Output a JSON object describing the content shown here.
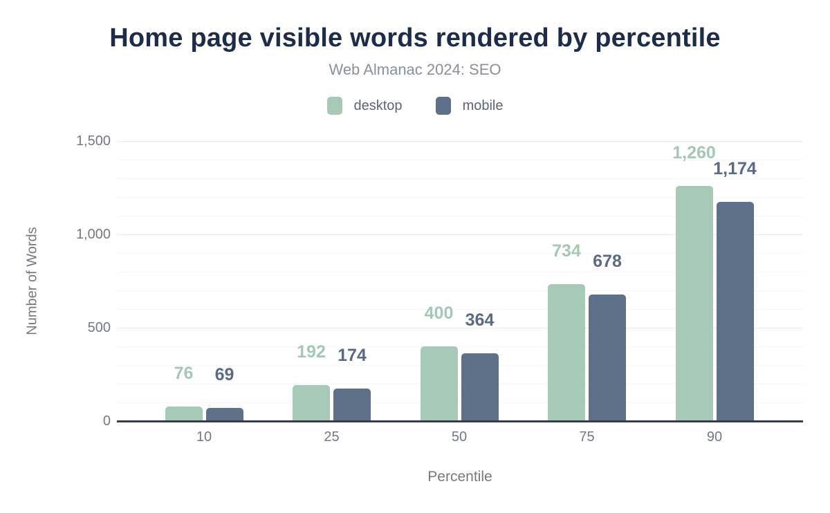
{
  "chart_data": {
    "type": "bar",
    "title": "Home page visible words rendered by percentile",
    "subtitle": "Web Almanac 2024: SEO",
    "xlabel": "Percentile",
    "ylabel": "Number of Words",
    "categories": [
      "10",
      "25",
      "50",
      "75",
      "90"
    ],
    "series": [
      {
        "name": "desktop",
        "color": "#a7cab8",
        "label_color": "#a4c8b5",
        "values": [
          76,
          192,
          400,
          734,
          1260
        ],
        "value_labels": [
          "76",
          "192",
          "400",
          "734",
          "1,260"
        ]
      },
      {
        "name": "mobile",
        "color": "#5f7089",
        "label_color": "#5a6a85",
        "values": [
          69,
          174,
          364,
          678,
          1174
        ],
        "value_labels": [
          "69",
          "174",
          "364",
          "678",
          "1,174"
        ]
      }
    ],
    "ylim": [
      0,
      1500
    ],
    "yticks": [
      {
        "value": 0,
        "label": "0"
      },
      {
        "value": 500,
        "label": "500"
      },
      {
        "value": 1000,
        "label": "1,000"
      },
      {
        "value": 1500,
        "label": "1,500"
      }
    ],
    "minor_tick_step": 100,
    "grid": true,
    "legend_position": "top"
  },
  "colors": {
    "background": "#ffffff",
    "title": "#1d2c4a",
    "subtitle": "#8b9097",
    "legend_text": "#60656c",
    "axis_text": "#74797f",
    "grid_major": "#e8eaed",
    "grid_minor": "#f3f4f6",
    "axis_line": "#363d47"
  }
}
